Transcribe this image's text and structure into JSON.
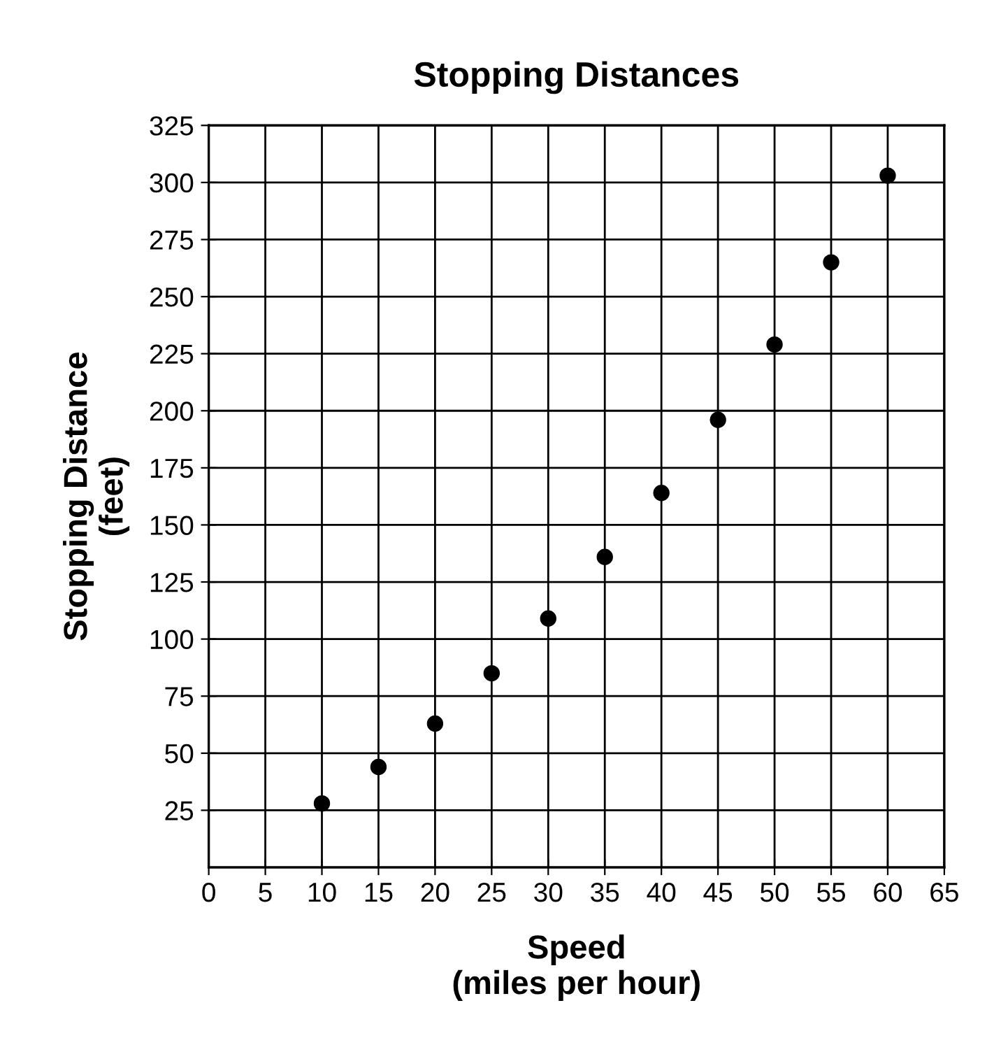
{
  "chart_data": {
    "type": "scatter",
    "title": "Stopping Distances",
    "xlabel": "Speed\n(miles per hour)",
    "ylabel": "Stopping Distance\n(feet)",
    "x": [
      10,
      15,
      20,
      25,
      30,
      35,
      40,
      45,
      50,
      55,
      60
    ],
    "values": [
      28,
      44,
      63,
      85,
      109,
      136,
      164,
      196,
      229,
      265,
      303
    ],
    "color": "#000000",
    "marker": "circle",
    "grid": true,
    "xlim": [
      0,
      65
    ],
    "xticks": [
      0,
      5,
      10,
      15,
      20,
      25,
      30,
      35,
      40,
      45,
      50,
      55,
      60,
      65
    ],
    "ylim": [
      0,
      325
    ],
    "yticks": [
      25,
      50,
      75,
      100,
      125,
      150,
      175,
      200,
      225,
      250,
      275,
      300,
      325
    ]
  }
}
